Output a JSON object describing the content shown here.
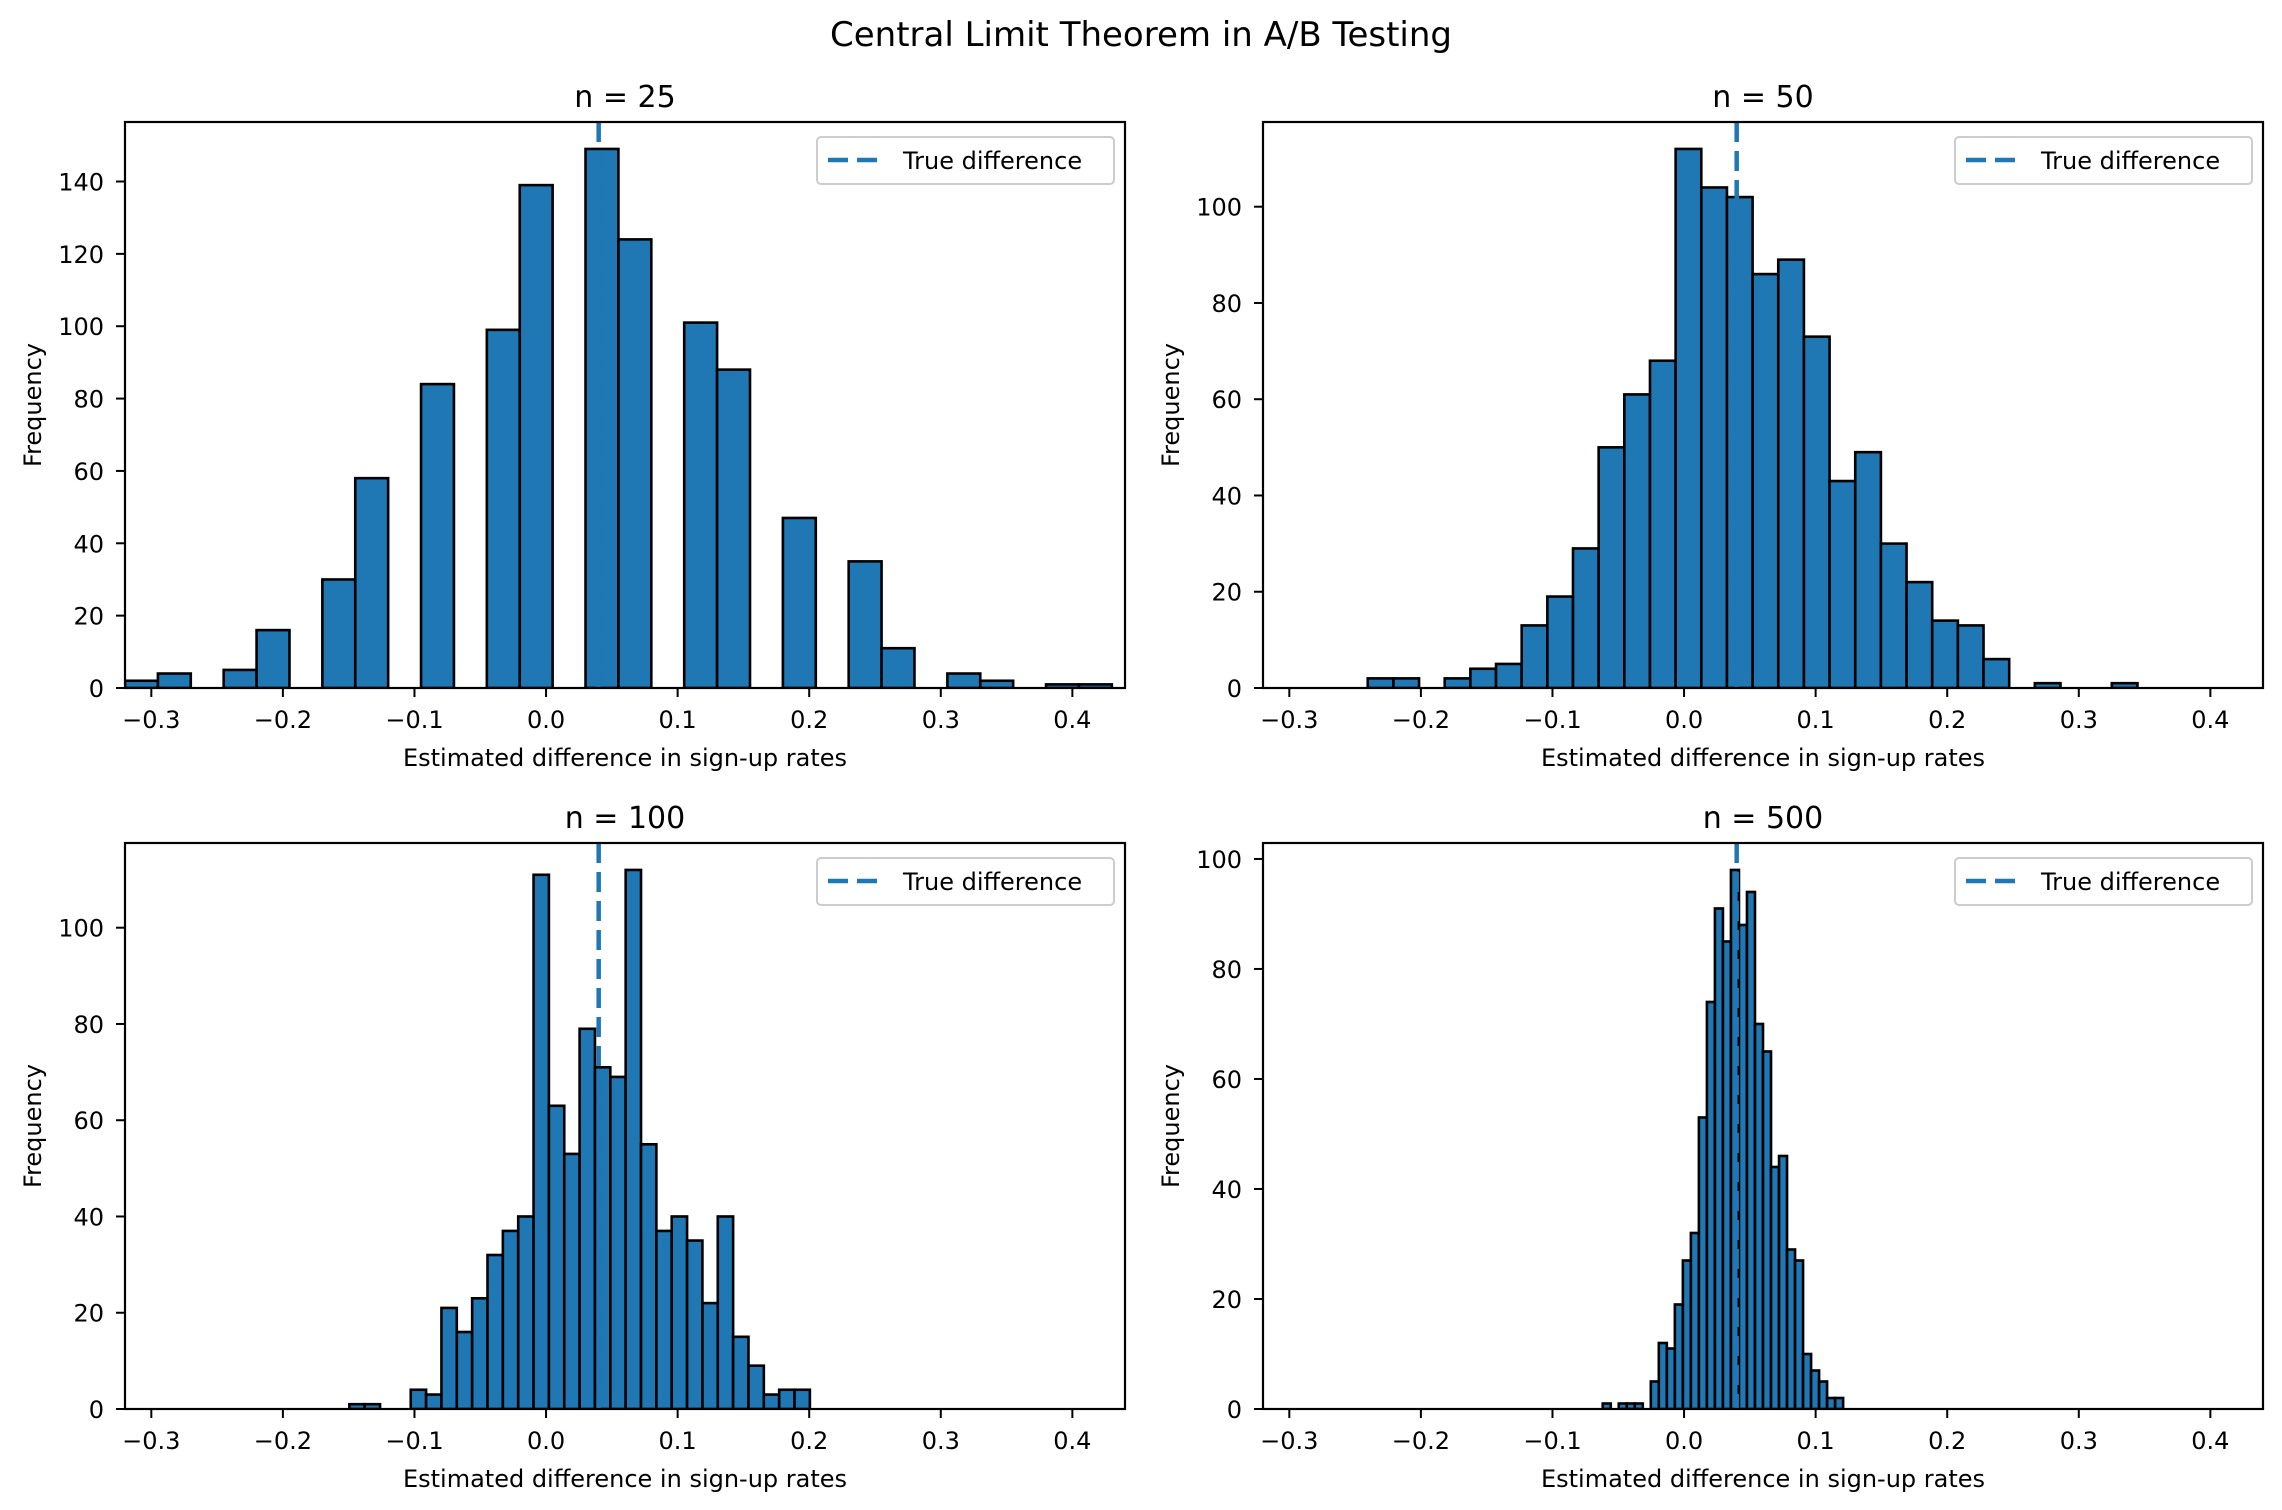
{
  "colors": {
    "bar_fill": "#1f77b4",
    "bar_edge": "#000000",
    "true_line": "#1f77b4",
    "legend_edge": "#cccccc"
  },
  "chart_data": {
    "type": "histogram",
    "title": "Central Limit Theorem in A/B Testing",
    "layout": "2x2 grid",
    "grid": false,
    "panels": [
      {
        "title": "n = 25",
        "xlabel": "Estimated difference in sign-up rates",
        "ylabel": "Frequency",
        "xlim": [
          -0.32,
          0.44
        ],
        "ylim": [
          0,
          156.45
        ],
        "xticks": [
          -0.3,
          -0.2,
          -0.1,
          0.0,
          0.1,
          0.2,
          0.3,
          0.4
        ],
        "xtick_labels": [
          "−0.3",
          "−0.2",
          "−0.1",
          "0.0",
          "0.1",
          "0.2",
          "0.3",
          "0.4"
        ],
        "yticks": [
          0,
          20,
          40,
          60,
          80,
          100,
          120,
          140
        ],
        "ytick_labels": [
          "0",
          "20",
          "40",
          "60",
          "80",
          "100",
          "120",
          "140"
        ],
        "bin_start": -0.32,
        "bin_width": 0.025,
        "counts": [
          2,
          4,
          0,
          5,
          16,
          0,
          30,
          58,
          0,
          84,
          0,
          99,
          139,
          0,
          149,
          124,
          0,
          101,
          88,
          0,
          47,
          0,
          35,
          11,
          0,
          4,
          2,
          0,
          1,
          1
        ],
        "true_difference": 0.04,
        "legend": {
          "label": "True difference",
          "location": "upper right"
        }
      },
      {
        "title": "n = 50",
        "xlabel": "Estimated difference in sign-up rates",
        "ylabel": "Frequency",
        "xlim": [
          -0.32,
          0.44
        ],
        "ylim": [
          0,
          117.6
        ],
        "xticks": [
          -0.3,
          -0.2,
          -0.1,
          0.0,
          0.1,
          0.2,
          0.3,
          0.4
        ],
        "xtick_labels": [
          "−0.3",
          "−0.2",
          "−0.1",
          "0.0",
          "0.1",
          "0.2",
          "0.3",
          "0.4"
        ],
        "yticks": [
          0,
          20,
          40,
          60,
          80,
          100
        ],
        "ytick_labels": [
          "0",
          "20",
          "40",
          "60",
          "80",
          "100"
        ],
        "bin_start": -0.2404,
        "bin_width": 0.0195,
        "counts": [
          2,
          2,
          0,
          2,
          4,
          5,
          13,
          19,
          29,
          50,
          61,
          68,
          112,
          104,
          102,
          86,
          89,
          73,
          43,
          49,
          30,
          22,
          14,
          13,
          6,
          0,
          1,
          0,
          0,
          1
        ],
        "true_difference": 0.04,
        "legend": {
          "label": "True difference",
          "location": "upper right"
        }
      },
      {
        "title": "n = 100",
        "xlabel": "Estimated difference in sign-up rates",
        "ylabel": "Frequency",
        "xlim": [
          -0.32,
          0.44
        ],
        "ylim": [
          0,
          117.6
        ],
        "xticks": [
          -0.3,
          -0.2,
          -0.1,
          0.0,
          0.1,
          0.2,
          0.3,
          0.4
        ],
        "xtick_labels": [
          "−0.3",
          "−0.2",
          "−0.1",
          "0.0",
          "0.1",
          "0.2",
          "0.3",
          "0.4"
        ],
        "yticks": [
          0,
          20,
          40,
          60,
          80,
          100
        ],
        "ytick_labels": [
          "0",
          "20",
          "40",
          "60",
          "80",
          "100"
        ],
        "bin_start": -0.1495,
        "bin_width": 0.011667,
        "counts": [
          1,
          1,
          0,
          0,
          4,
          3,
          21,
          16,
          23,
          32,
          37,
          40,
          111,
          63,
          53,
          79,
          71,
          69,
          112,
          55,
          37,
          40,
          35,
          22,
          40,
          15,
          9,
          3,
          4,
          4
        ],
        "true_difference": 0.04,
        "legend": {
          "label": "True difference",
          "location": "upper right"
        }
      },
      {
        "title": "n = 500",
        "xlabel": "Estimated difference in sign-up rates",
        "ylabel": "Frequency",
        "xlim": [
          -0.32,
          0.44
        ],
        "ylim": [
          0,
          102.9
        ],
        "xticks": [
          -0.3,
          -0.2,
          -0.1,
          0.0,
          0.1,
          0.2,
          0.3,
          0.4
        ],
        "xtick_labels": [
          "−0.3",
          "−0.2",
          "−0.1",
          "0.0",
          "0.1",
          "0.2",
          "0.3",
          "0.4"
        ],
        "yticks": [
          0,
          20,
          40,
          60,
          80,
          100
        ],
        "ytick_labels": [
          "0",
          "20",
          "40",
          "60",
          "80",
          "100"
        ],
        "bin_start": -0.0618,
        "bin_width": 0.00609,
        "counts": [
          1,
          0,
          1,
          1,
          1,
          0,
          5,
          12,
          11,
          19,
          27,
          32,
          53,
          74,
          91,
          85,
          98,
          88,
          94,
          70,
          65,
          44,
          46,
          29,
          27,
          10,
          7,
          5,
          2,
          2
        ],
        "true_difference": 0.04,
        "legend": {
          "label": "True difference",
          "location": "upper right"
        }
      }
    ]
  }
}
